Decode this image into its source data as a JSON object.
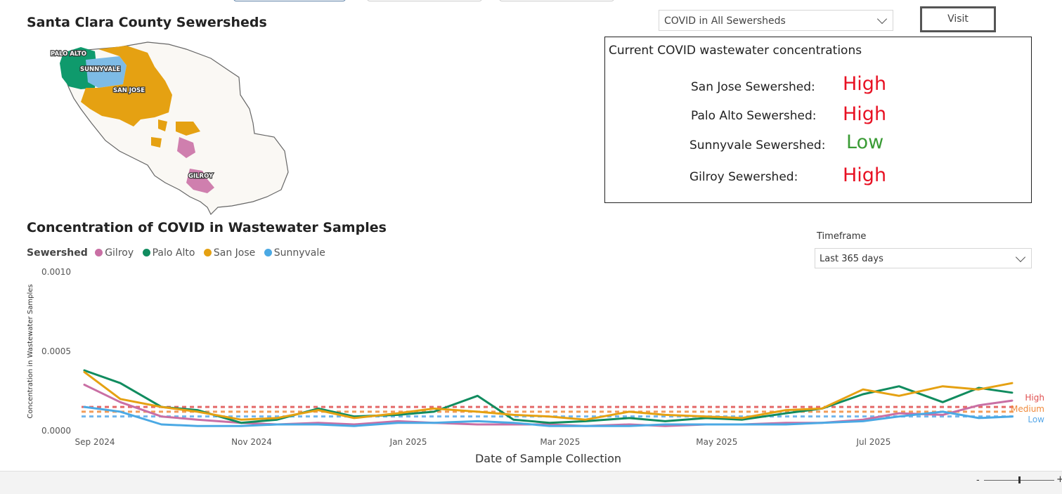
{
  "map": {
    "title": "Santa Clara County Sewersheds",
    "labels": {
      "palo_alto": "PALO ALTO",
      "sunnyvale": "SUNNYVALE",
      "san_jose": "SAN JOSE",
      "gilroy": "GILROY"
    }
  },
  "filter": {
    "selected": "COVID in All Sewersheds",
    "visit_label": "Visit"
  },
  "status": {
    "heading": "Current COVID wastewater concentrations",
    "rows": [
      {
        "label": "San Jose Sewershed:",
        "value": "High",
        "color": "#e81123"
      },
      {
        "label": "Palo Alto Sewershed:",
        "value": "High",
        "color": "#e81123"
      },
      {
        "label": "Sunnyvale Sewershed:",
        "value": "Low",
        "color": "#3a9b35"
      },
      {
        "label": "Gilroy Sewershed:",
        "value": "High",
        "color": "#e81123"
      }
    ]
  },
  "timeframe": {
    "label": "Timeframe",
    "selected": "Last 365 days"
  },
  "chart_data": {
    "type": "line",
    "title": "Concentration of COVID in Wastewater Samples",
    "legend_title": "Sewershed",
    "legend_position": "top-left",
    "xlabel": "Date of Sample Collection",
    "ylabel": "Concentration in Wastewater Samples",
    "ylim": [
      0,
      0.001
    ],
    "y_ticks": [
      "0.0000",
      "0.0005",
      "0.0010"
    ],
    "x_ticks": [
      "Sep 2024",
      "Nov 2024",
      "Jan 2025",
      "Mar 2025",
      "May 2025",
      "Jul 2025"
    ],
    "x": [
      "2024-09-01",
      "2024-09-15",
      "2024-10-01",
      "2024-10-15",
      "2024-11-01",
      "2024-11-15",
      "2024-12-01",
      "2024-12-15",
      "2025-01-01",
      "2025-01-15",
      "2025-02-01",
      "2025-02-15",
      "2025-03-01",
      "2025-03-15",
      "2025-04-01",
      "2025-04-15",
      "2025-05-01",
      "2025-05-15",
      "2025-06-01",
      "2025-06-15",
      "2025-07-01",
      "2025-07-15",
      "2025-08-01",
      "2025-08-15",
      "2025-08-28"
    ],
    "series": [
      {
        "name": "Gilroy",
        "color": "#c96fa4",
        "values": [
          0.00029,
          0.00018,
          9e-05,
          7e-05,
          5e-05,
          4e-05,
          5e-05,
          4e-05,
          6e-05,
          5e-05,
          4e-05,
          4e-05,
          4e-05,
          3e-05,
          4e-05,
          3e-05,
          4e-05,
          4e-05,
          5e-05,
          5e-05,
          7e-05,
          0.00011,
          0.0001,
          0.00016,
          0.00019
        ]
      },
      {
        "name": "Palo Alto",
        "color": "#118c5f",
        "values": [
          0.00038,
          0.0003,
          0.00015,
          0.00013,
          5e-05,
          7e-05,
          0.00014,
          9e-05,
          0.0001,
          0.00012,
          0.00022,
          7e-05,
          5e-05,
          6e-05,
          8e-05,
          6e-05,
          8e-05,
          7e-05,
          0.00011,
          0.00014,
          0.00023,
          0.00028,
          0.00018,
          0.00027,
          0.00024
        ]
      },
      {
        "name": "San Jose",
        "color": "#e5a112",
        "values": [
          0.00037,
          0.0002,
          0.00015,
          0.00012,
          7e-05,
          8e-05,
          0.00013,
          8e-05,
          0.00011,
          0.00014,
          0.00012,
          0.0001,
          9e-05,
          7e-05,
          0.00012,
          0.0001,
          9e-05,
          8e-05,
          0.00013,
          0.00014,
          0.00026,
          0.00022,
          0.00028,
          0.00026,
          0.0003
        ]
      },
      {
        "name": "Sunnyvale",
        "color": "#4ba9e4",
        "values": [
          0.00015,
          0.00012,
          4e-05,
          3e-05,
          3e-05,
          4e-05,
          4e-05,
          3e-05,
          5e-05,
          5e-05,
          6e-05,
          5e-05,
          3e-05,
          3e-05,
          3e-05,
          4e-05,
          4e-05,
          4e-05,
          4e-05,
          5e-05,
          6e-05,
          9e-05,
          0.00012,
          8e-05,
          9e-05
        ]
      }
    ],
    "thresholds": [
      {
        "name": "High",
        "value": 0.00015,
        "color": "#e05050"
      },
      {
        "name": "Medium",
        "value": 0.00012,
        "color": "#f08a3c"
      },
      {
        "name": "Low",
        "value": 9e-05,
        "color": "#5aa9e8"
      }
    ]
  }
}
